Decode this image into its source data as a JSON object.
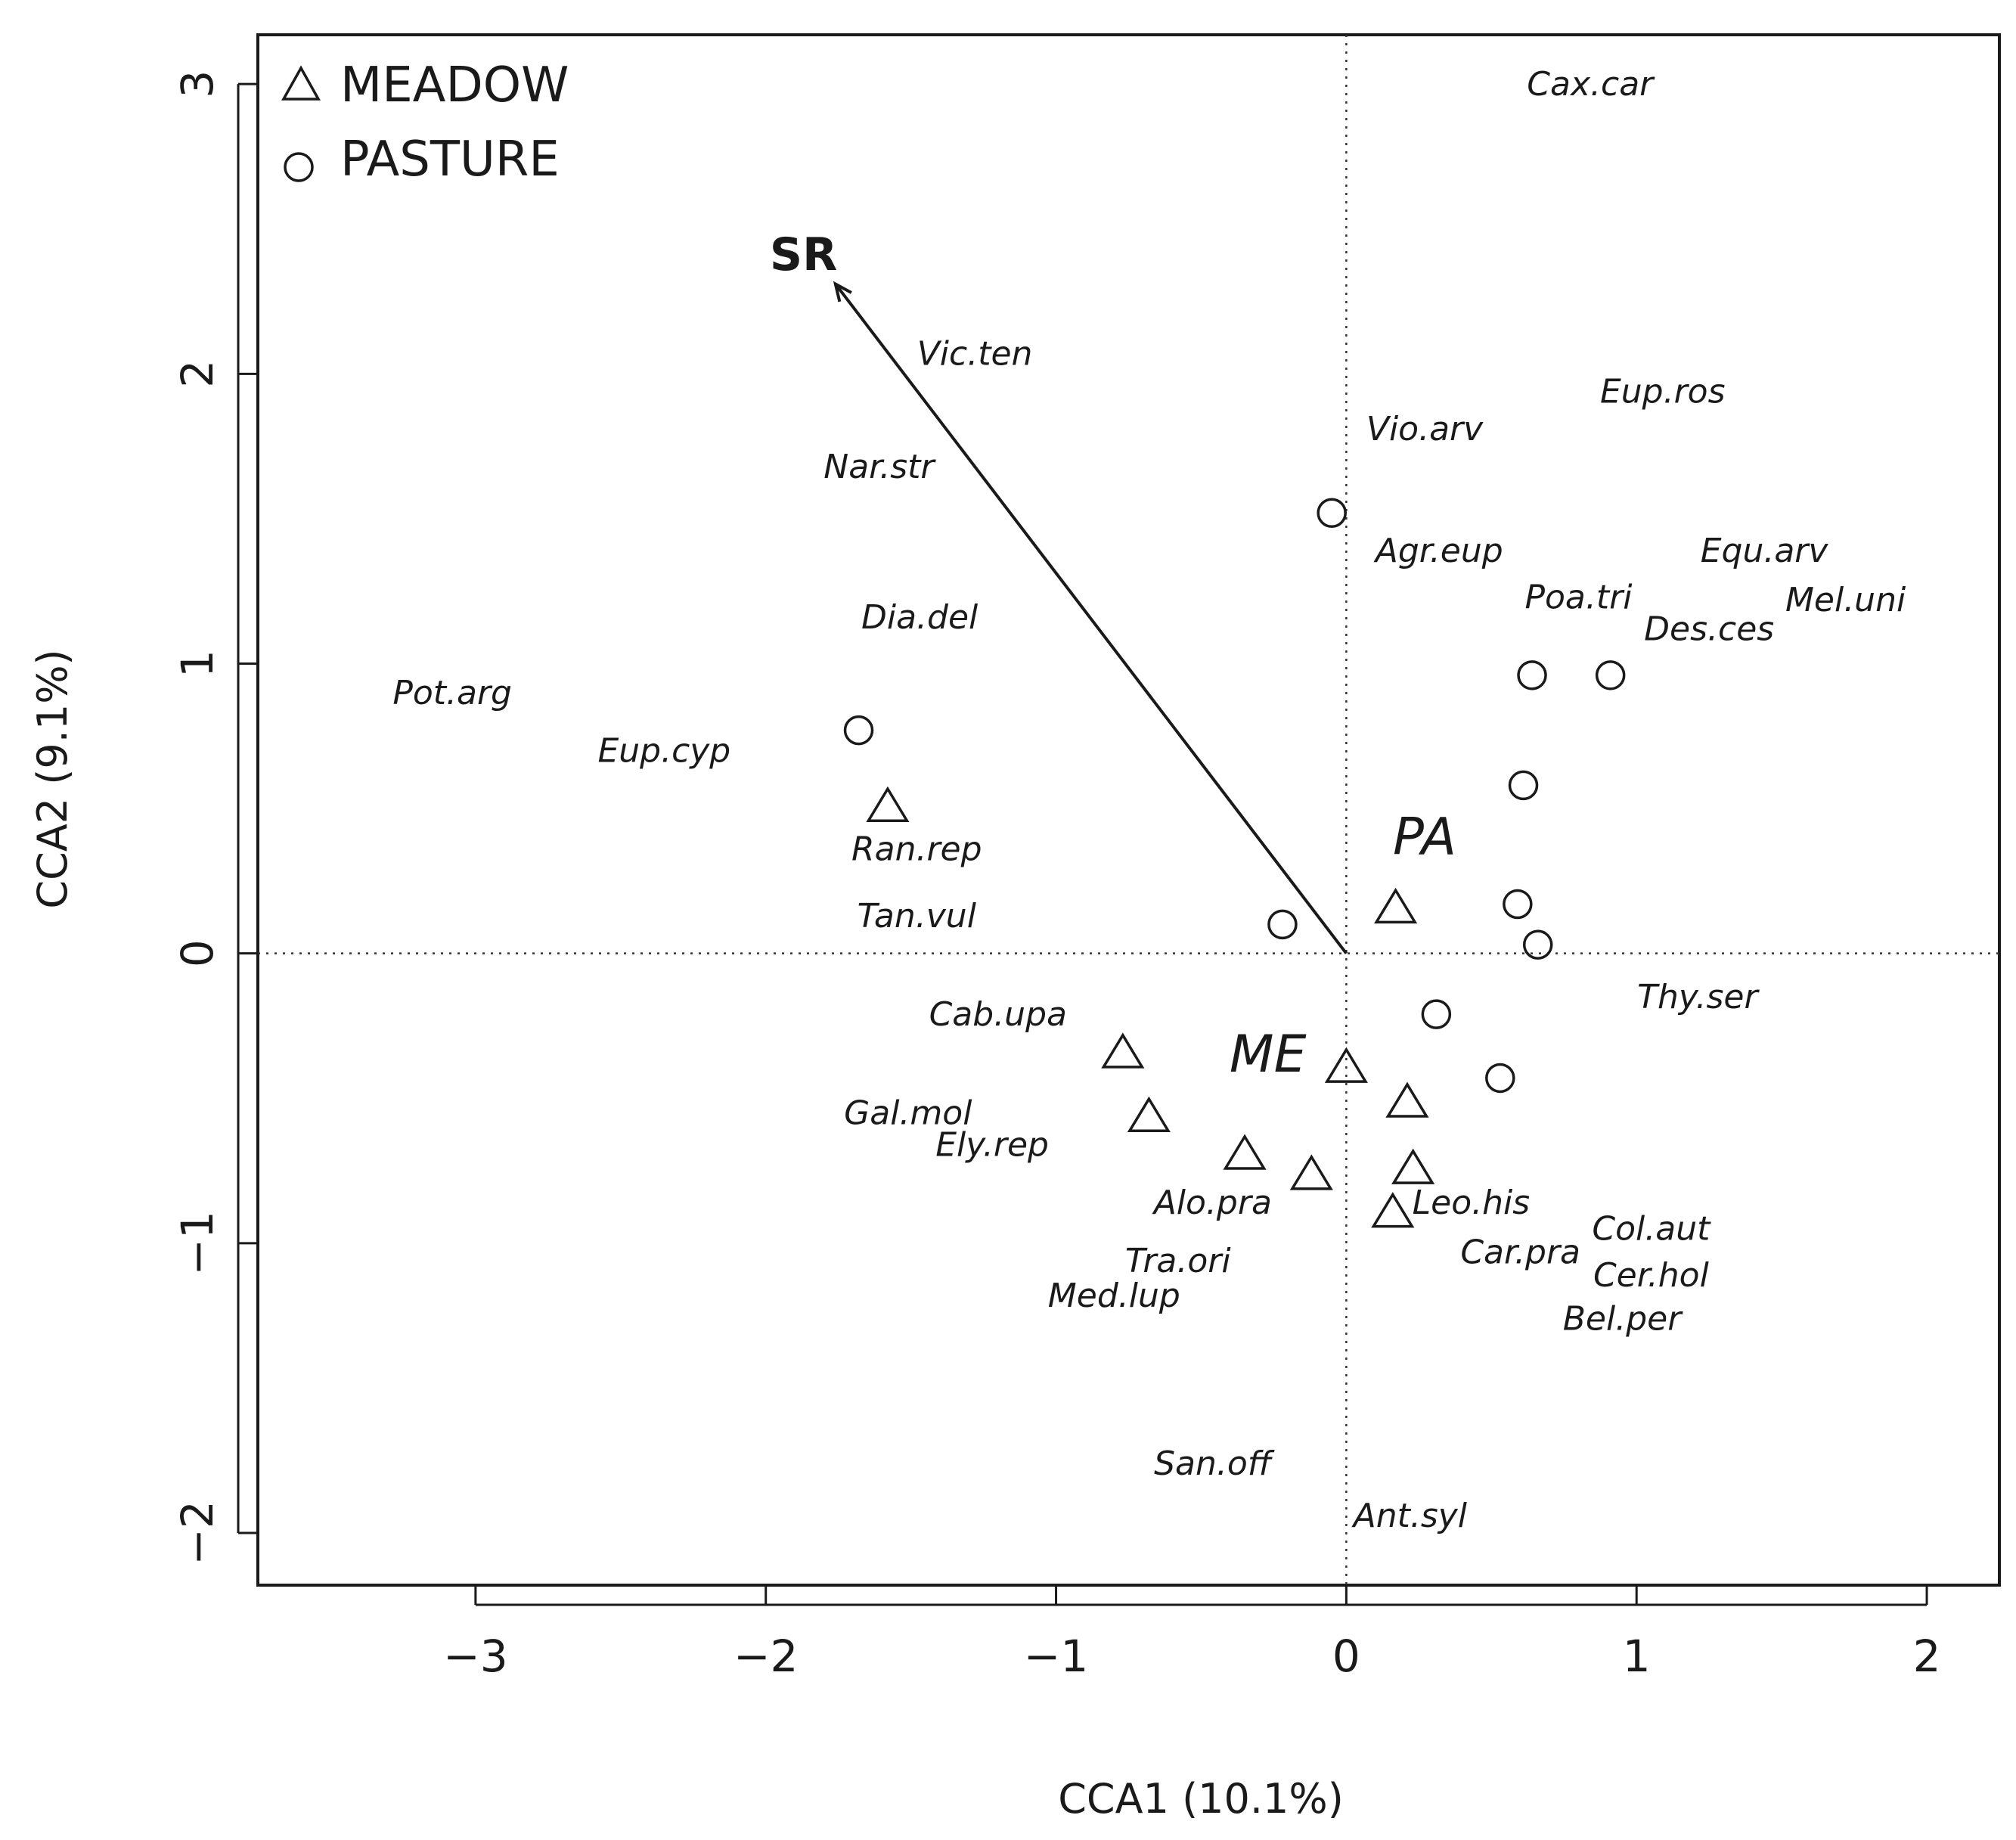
{
  "chart_data": {
    "type": "scatter",
    "title": "",
    "xlabel": "CCA1 (10.1%)",
    "ylabel": "CCA2 (9.1%)",
    "xlim": [
      -3.75,
      2.25
    ],
    "ylim": [
      -2.18,
      3.17
    ],
    "xticks": [
      -3,
      -2,
      -1,
      0,
      1,
      2
    ],
    "yticks": [
      -2,
      -1,
      0,
      1,
      2,
      3
    ],
    "xtick_labels": [
      "−3",
      "−2",
      "−1",
      "0",
      "1",
      "2"
    ],
    "ytick_labels": [
      "−2",
      "−1",
      "0",
      "1",
      "2",
      "3"
    ],
    "grid": false,
    "reference_lines": {
      "x": 0,
      "y": 0,
      "style": "dotted"
    },
    "legend": {
      "position": "top-left",
      "entries": [
        {
          "label": "MEADOW",
          "marker": "triangle"
        },
        {
          "label": "PASTURE",
          "marker": "circle"
        }
      ]
    },
    "series": [
      {
        "name": "MEADOW",
        "marker": "triangle",
        "points": [
          {
            "x": -1.58,
            "y": 0.5
          },
          {
            "x": 0.17,
            "y": 0.15
          },
          {
            "x": -0.77,
            "y": -0.35
          },
          {
            "x": 0.0,
            "y": -0.4
          },
          {
            "x": 0.21,
            "y": -0.52
          },
          {
            "x": -0.68,
            "y": -0.57
          },
          {
            "x": -0.35,
            "y": -0.7
          },
          {
            "x": -0.12,
            "y": -0.77
          },
          {
            "x": 0.23,
            "y": -0.75
          },
          {
            "x": 0.16,
            "y": -0.9
          }
        ]
      },
      {
        "name": "PASTURE",
        "marker": "circle",
        "points": [
          {
            "x": -0.05,
            "y": 1.52
          },
          {
            "x": 0.64,
            "y": 0.96
          },
          {
            "x": 0.91,
            "y": 0.96
          },
          {
            "x": -1.68,
            "y": 0.77
          },
          {
            "x": 0.61,
            "y": 0.58
          },
          {
            "x": 0.59,
            "y": 0.17
          },
          {
            "x": -0.22,
            "y": 0.1
          },
          {
            "x": 0.66,
            "y": 0.03
          },
          {
            "x": 0.31,
            "y": -0.21
          },
          {
            "x": 0.53,
            "y": -0.43
          }
        ]
      }
    ],
    "species_labels": [
      {
        "label": "Cax.car",
        "x": 0.84,
        "y": 3.0
      },
      {
        "label": "Vic.ten",
        "x": -1.28,
        "y": 2.07
      },
      {
        "label": "Eup.ros",
        "x": 1.09,
        "y": 1.94
      },
      {
        "label": "Vio.arv",
        "x": 0.27,
        "y": 1.81
      },
      {
        "label": "Nar.str",
        "x": -1.61,
        "y": 1.68
      },
      {
        "label": "Agr.eup",
        "x": 0.32,
        "y": 1.39
      },
      {
        "label": "Equ.arv",
        "x": 1.44,
        "y": 1.39
      },
      {
        "label": "Poa.tri",
        "x": 0.8,
        "y": 1.23
      },
      {
        "label": "Mel.uni",
        "x": 1.72,
        "y": 1.22
      },
      {
        "label": "Des.ces",
        "x": 1.25,
        "y": 1.12
      },
      {
        "label": "Dia.del",
        "x": -1.47,
        "y": 1.16
      },
      {
        "label": "Pot.arg",
        "x": -3.08,
        "y": 0.9
      },
      {
        "label": "Eup.cyp",
        "x": -2.35,
        "y": 0.7
      },
      {
        "label": "Ran.rep",
        "x": -1.48,
        "y": 0.36
      },
      {
        "label": "PA",
        "x": 0.27,
        "y": 0.4,
        "group": true
      },
      {
        "label": "Tan.vul",
        "x": -1.48,
        "y": 0.13
      },
      {
        "label": "Thy.ser",
        "x": 1.21,
        "y": -0.15
      },
      {
        "label": "Cab.upa",
        "x": -1.2,
        "y": -0.21
      },
      {
        "label": "ME",
        "x": -0.27,
        "y": -0.35,
        "group": true
      },
      {
        "label": "Gal.mol",
        "x": -1.51,
        "y": -0.55
      },
      {
        "label": "Ely.rep",
        "x": -1.22,
        "y": -0.66
      },
      {
        "label": "Alo.pra",
        "x": -0.46,
        "y": -0.86
      },
      {
        "label": "Leo.his",
        "x": 0.43,
        "y": -0.86
      },
      {
        "label": "Col.aut",
        "x": 1.05,
        "y": -0.95
      },
      {
        "label": "Car.pra",
        "x": 0.6,
        "y": -1.03
      },
      {
        "label": "Tra.ori",
        "x": -0.58,
        "y": -1.06
      },
      {
        "label": "Cer.hol",
        "x": 1.05,
        "y": -1.11
      },
      {
        "label": "Med.lup",
        "x": -0.8,
        "y": -1.18
      },
      {
        "label": "Bel.per",
        "x": 0.95,
        "y": -1.26
      },
      {
        "label": "San.off",
        "x": -0.46,
        "y": -1.76
      },
      {
        "label": "Ant.syl",
        "x": 0.22,
        "y": -1.94
      }
    ],
    "vectors": [
      {
        "label": "SR",
        "x0": 0,
        "y0": 0,
        "x1": -1.76,
        "y1": 2.31,
        "label_x": -1.87,
        "label_y": 2.41
      }
    ]
  }
}
